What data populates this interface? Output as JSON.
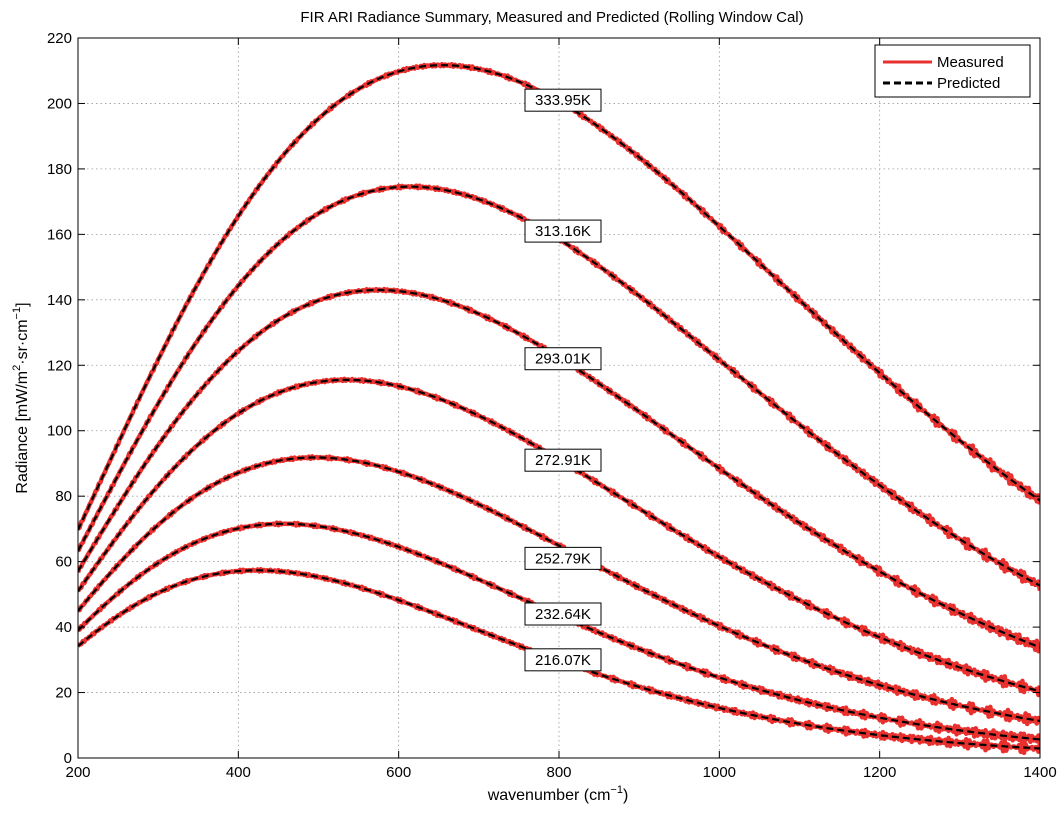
{
  "chart_data": {
    "type": "line",
    "title": "FIR ARI Radiance Summary, Measured and Predicted (Rolling Window Cal)",
    "xlabel": {
      "main": "wavenumber (cm",
      "sup": "−1",
      "end": ")"
    },
    "ylabel": {
      "a": "Radiance [mW/m",
      "sup1": "2",
      "b": "·sr·cm",
      "sup2": "−1",
      "c": "]"
    },
    "xlim": [
      200,
      1400
    ],
    "ylim": [
      0,
      220
    ],
    "x_ticks": [
      200,
      400,
      600,
      800,
      1000,
      1200,
      1400
    ],
    "y_ticks": [
      0,
      20,
      40,
      60,
      80,
      100,
      120,
      140,
      160,
      180,
      200,
      220
    ],
    "grid": true,
    "legend": {
      "position": "top-right",
      "entries": [
        {
          "name": "Measured",
          "color": "#e8312f",
          "style": "solid"
        },
        {
          "name": "Predicted",
          "color": "#000000",
          "style": "dashed"
        }
      ]
    },
    "colors": {
      "measured": "#e8312f",
      "predicted": "#000000"
    },
    "series": [
      {
        "name": "333.95K",
        "temperature_K": 333.95,
        "label_at": [
          800,
          201
        ]
      },
      {
        "name": "313.16K",
        "temperature_K": 313.16,
        "label_at": [
          800,
          161
        ]
      },
      {
        "name": "293.01K",
        "temperature_K": 293.01,
        "label_at": [
          800,
          122
        ]
      },
      {
        "name": "272.91K",
        "temperature_K": 272.91,
        "label_at": [
          800,
          91
        ]
      },
      {
        "name": "252.79K",
        "temperature_K": 252.79,
        "label_at": [
          800,
          61
        ]
      },
      {
        "name": "232.64K",
        "temperature_K": 232.64,
        "label_at": [
          800,
          44
        ]
      },
      {
        "name": "216.07K",
        "temperature_K": 216.07,
        "label_at": [
          800,
          30
        ]
      }
    ]
  }
}
